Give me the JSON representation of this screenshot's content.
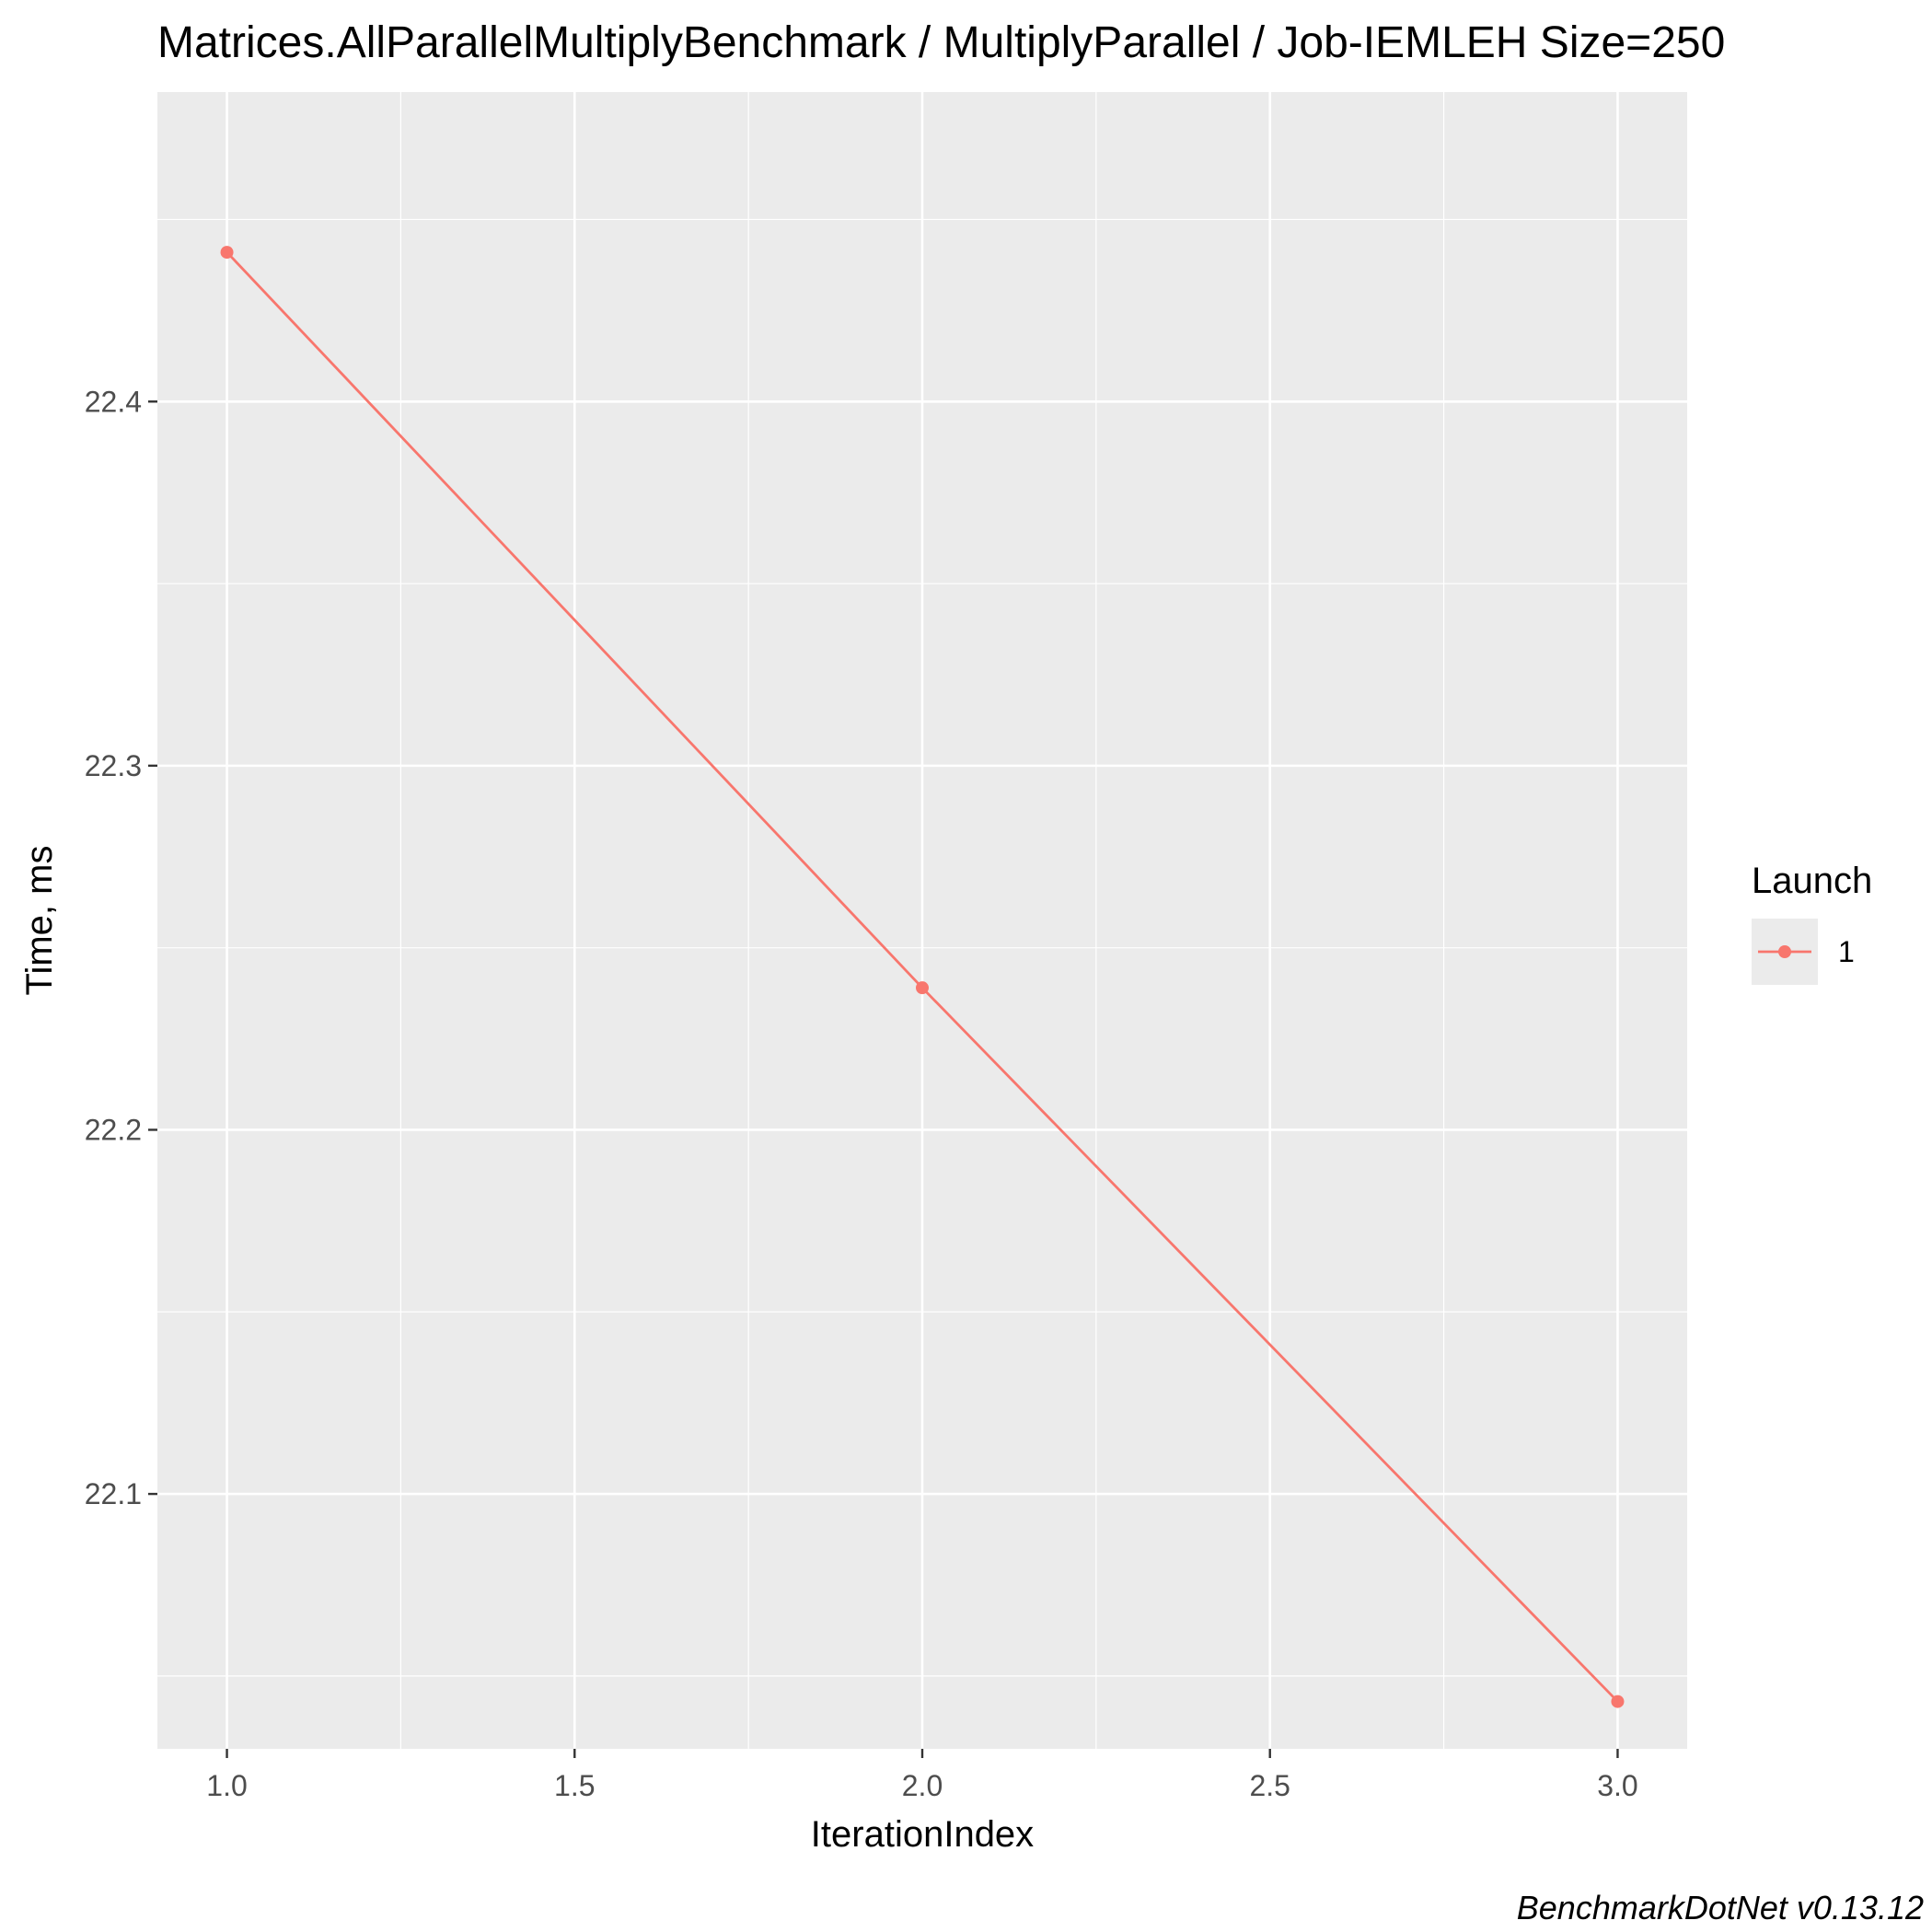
{
  "chart_data": {
    "type": "line",
    "title": "Matrices.AllParallelMultiplyBenchmark / MultiplyParallel / Job-IEMLEH Size=250",
    "xlabel": "IterationIndex",
    "ylabel": "Time, ms",
    "caption": "BenchmarkDotNet v0.13.12",
    "xlim": [
      0.9,
      3.1
    ],
    "ylim": [
      22.03,
      22.485
    ],
    "x_ticks": [
      1.0,
      1.5,
      2.0,
      2.5,
      3.0
    ],
    "x_tick_labels": [
      "1.0",
      "1.5",
      "2.0",
      "2.5",
      "3.0"
    ],
    "y_ticks": [
      22.1,
      22.2,
      22.3,
      22.4
    ],
    "y_tick_labels": [
      "22.1",
      "22.2",
      "22.3",
      "22.4"
    ],
    "grid": true,
    "legend": {
      "title": "Launch",
      "position": "right"
    },
    "series": [
      {
        "name": "1",
        "color": "#F8766D",
        "x": [
          1,
          2,
          3
        ],
        "y": [
          22.441,
          22.239,
          22.043
        ]
      }
    ]
  }
}
